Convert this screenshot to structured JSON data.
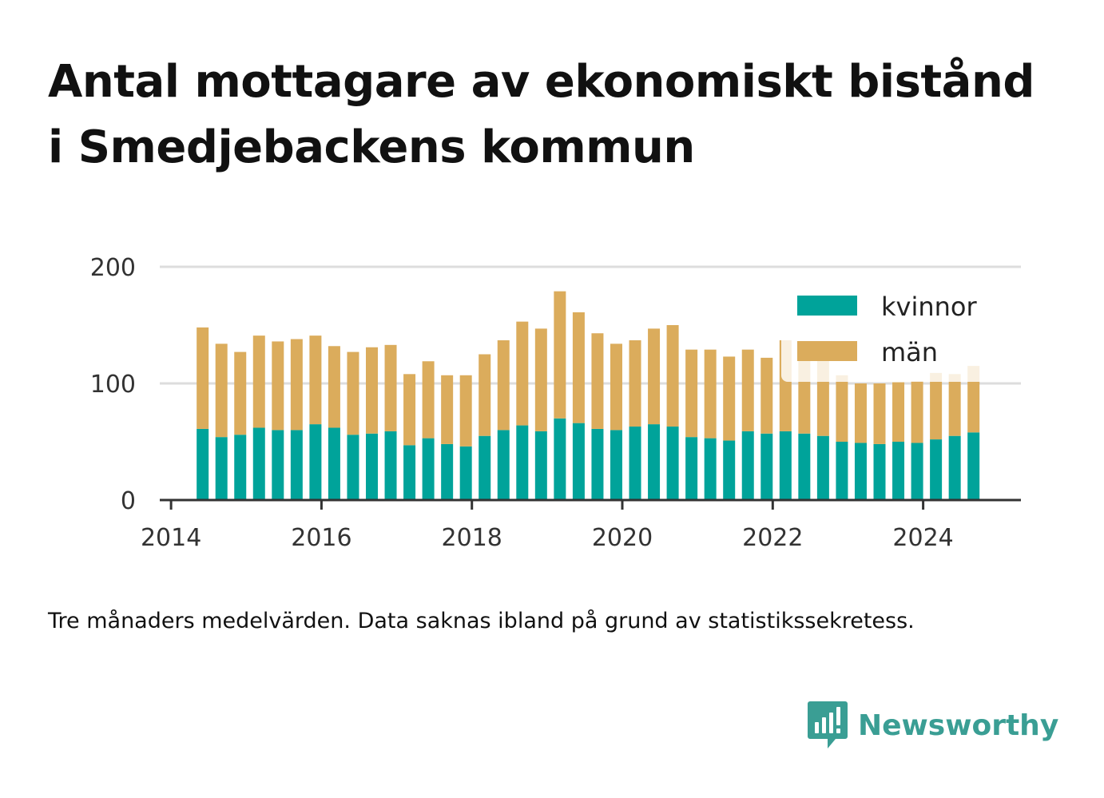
{
  "title": "Antal mottagare av ekonomiskt bistånd i Smedjebackens kommun",
  "caption": "Tre månaders medelvärden. Data saknas ibland på grund av statistikssekretess.",
  "brand": {
    "name": "Newsworthy"
  },
  "colors": {
    "kvinnor": "#00a39a",
    "man": "#dbac5c",
    "grid": "#dddddd",
    "axis": "#333333",
    "brand": "#3a9e94"
  },
  "chart_data": {
    "type": "bar",
    "stacked": true,
    "x_ticks": [
      "2014",
      "2016",
      "2018",
      "2020",
      "2022",
      "2024"
    ],
    "y_ticks": [
      "0",
      "100",
      "200"
    ],
    "ylim": [
      0,
      200
    ],
    "xlim_years": [
      2013.85,
      2025.3
    ],
    "grid": true,
    "legend_position": "top-right",
    "x": [
      2014.42,
      2014.67,
      2014.92,
      2015.17,
      2015.42,
      2015.67,
      2015.92,
      2016.17,
      2016.42,
      2016.67,
      2016.92,
      2017.17,
      2017.42,
      2017.67,
      2017.92,
      2018.17,
      2018.42,
      2018.67,
      2018.92,
      2019.17,
      2019.42,
      2019.67,
      2019.92,
      2020.17,
      2020.42,
      2020.67,
      2020.92,
      2021.17,
      2021.42,
      2021.67,
      2021.92,
      2022.17,
      2022.42,
      2022.67,
      2022.92,
      2023.17,
      2023.42,
      2023.67,
      2023.92,
      2024.17,
      2024.42,
      2024.67
    ],
    "series": [
      {
        "name": "kvinnor",
        "values": [
          61,
          54,
          56,
          62,
          60,
          60,
          65,
          62,
          56,
          57,
          59,
          47,
          53,
          48,
          46,
          55,
          60,
          64,
          59,
          70,
          66,
          61,
          60,
          63,
          65,
          63,
          54,
          53,
          51,
          59,
          57,
          59,
          57,
          55,
          50,
          49,
          48,
          50,
          49,
          52,
          55,
          58
        ]
      },
      {
        "name": "män",
        "values": [
          87,
          80,
          71,
          79,
          76,
          78,
          76,
          70,
          71,
          74,
          74,
          61,
          66,
          59,
          61,
          70,
          77,
          89,
          88,
          109,
          95,
          82,
          74,
          74,
          82,
          87,
          75,
          76,
          72,
          70,
          65,
          78,
          75,
          69,
          57,
          51,
          52,
          51,
          53,
          57,
          53,
          57
        ]
      }
    ]
  }
}
